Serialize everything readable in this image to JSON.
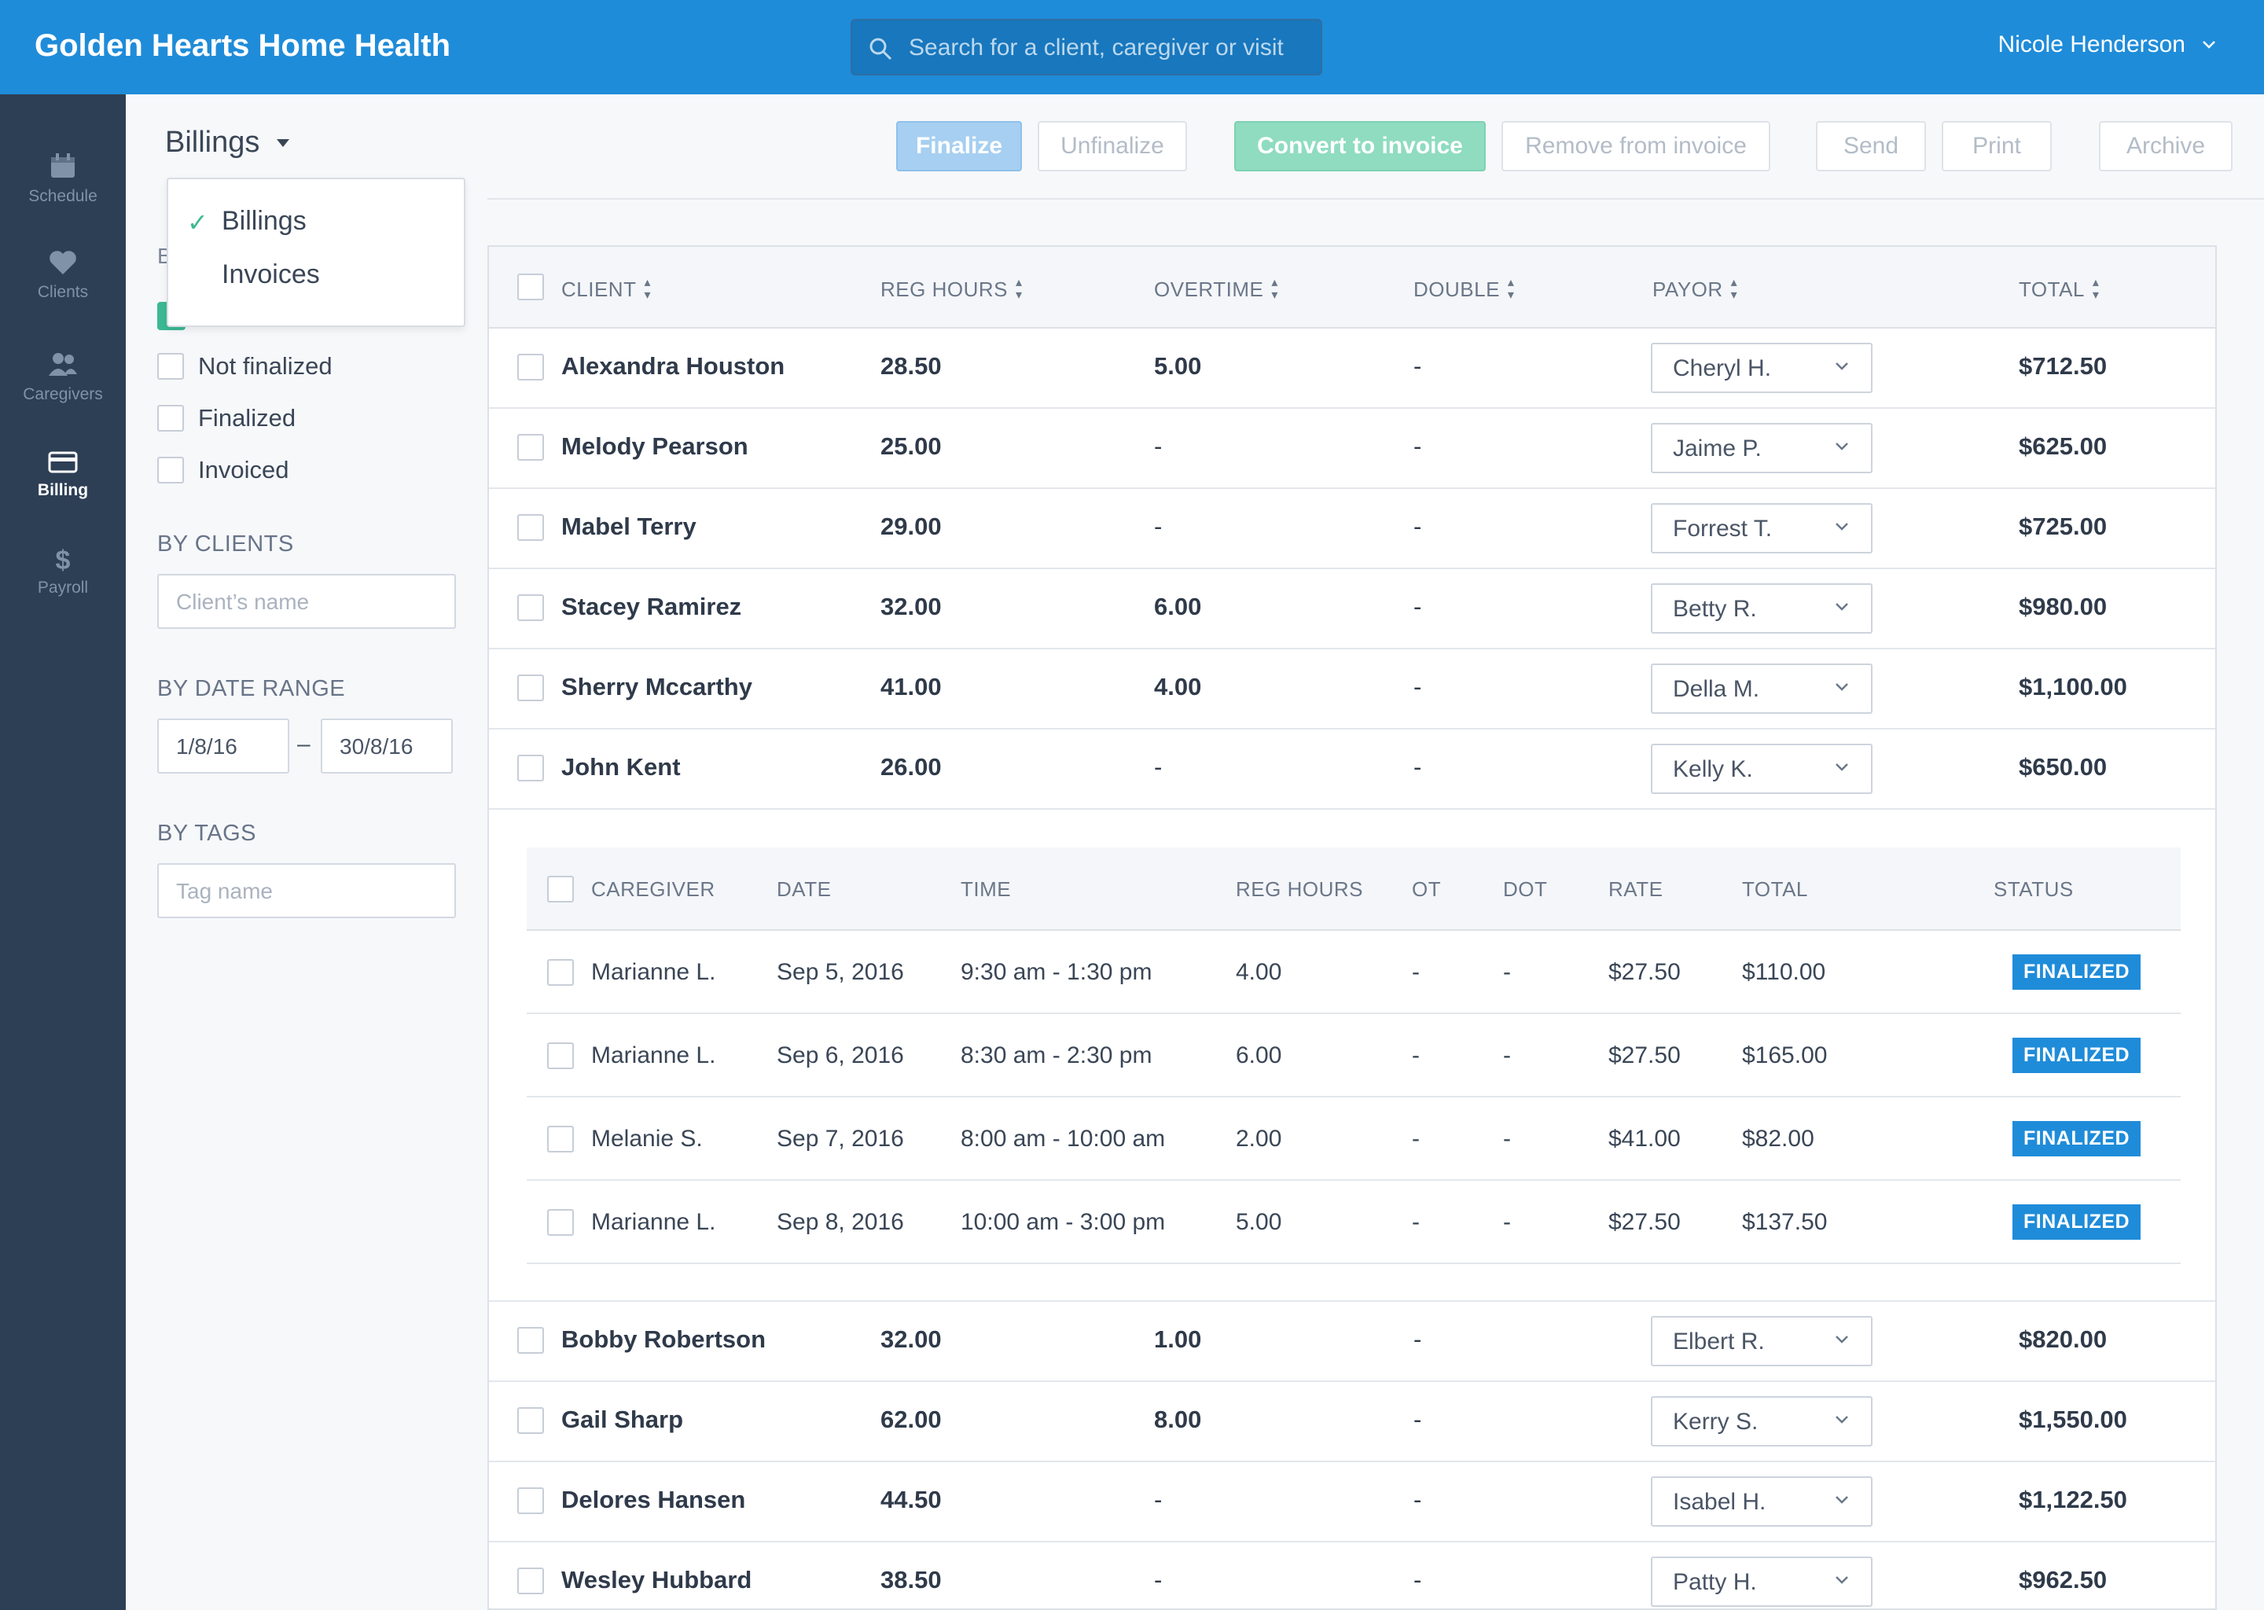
{
  "app": {
    "title": "Golden Hearts Home Health",
    "user": "Nicole Henderson"
  },
  "search": {
    "placeholder": "Search for a client, caregiver or visit"
  },
  "nav": [
    {
      "label": "Schedule",
      "icon": "calendar-icon",
      "active": false
    },
    {
      "label": "Clients",
      "icon": "heart-icon",
      "active": false
    },
    {
      "label": "Caregivers",
      "icon": "people-icon",
      "active": false
    },
    {
      "label": "Billing",
      "icon": "card-icon",
      "active": true
    },
    {
      "label": "Payroll",
      "icon": "dollar-icon",
      "active": false
    }
  ],
  "mode": {
    "selected": "Billings",
    "options": [
      "Billings",
      "Invoices"
    ]
  },
  "filters": {
    "partial_heading": "B",
    "status_options": [
      "Not finalized",
      "Finalized",
      "Invoiced"
    ],
    "by_clients": {
      "heading": "BY CLIENTS",
      "placeholder": "Client’s name"
    },
    "by_date": {
      "heading": "BY DATE RANGE",
      "from": "1/8/16",
      "separator": "–",
      "to": "30/8/16"
    },
    "by_tags": {
      "heading": "BY TAGS",
      "placeholder": "Tag name"
    }
  },
  "toolbar": {
    "finalize": "Finalize",
    "unfinalize": "Unfinalize",
    "convert": "Convert to invoice",
    "remove": "Remove from invoice",
    "send": "Send",
    "print": "Print",
    "archive": "Archive"
  },
  "table": {
    "headers": {
      "client": "CLIENT",
      "reg_hours": "REG HOURS",
      "overtime": "OVERTIME",
      "double": "DOUBLE",
      "payor": "PAYOR",
      "total": "TOTAL"
    },
    "rows_top": [
      {
        "client": "Alexandra Houston",
        "reg": "28.50",
        "ot": "5.00",
        "double": "-",
        "payor": "Cheryl H.",
        "total": "$712.50"
      },
      {
        "client": "Melody Pearson",
        "reg": "25.00",
        "ot": "-",
        "double": "-",
        "payor": "Jaime P.",
        "total": "$625.00"
      },
      {
        "client": "Mabel Terry",
        "reg": "29.00",
        "ot": "-",
        "double": "-",
        "payor": "Forrest T.",
        "total": "$725.00"
      },
      {
        "client": "Stacey Ramirez",
        "reg": "32.00",
        "ot": "6.00",
        "double": "-",
        "payor": "Betty R.",
        "total": "$980.00"
      },
      {
        "client": "Sherry Mccarthy",
        "reg": "41.00",
        "ot": "4.00",
        "double": "-",
        "payor": "Della M.",
        "total": "$1,100.00"
      },
      {
        "client": "John Kent",
        "reg": "26.00",
        "ot": "-",
        "double": "-",
        "payor": "Kelly K.",
        "total": "$650.00"
      }
    ],
    "visits": {
      "headers": {
        "caregiver": "CAREGIVER",
        "date": "DATE",
        "time": "TIME",
        "reg": "REG HOURS",
        "ot": "OT",
        "dot": "DOT",
        "rate": "RATE",
        "total": "TOTAL",
        "status": "STATUS"
      },
      "rows": [
        {
          "caregiver": "Marianne L.",
          "date": "Sep 5, 2016",
          "time": "9:30 am - 1:30 pm",
          "reg": "4.00",
          "ot": "-",
          "dot": "-",
          "rate": "$27.50",
          "total": "$110.00",
          "status": "FINALIZED"
        },
        {
          "caregiver": "Marianne L.",
          "date": "Sep 6, 2016",
          "time": "8:30 am - 2:30 pm",
          "reg": "6.00",
          "ot": "-",
          "dot": "-",
          "rate": "$27.50",
          "total": "$165.00",
          "status": "FINALIZED"
        },
        {
          "caregiver": "Melanie S.",
          "date": "Sep 7, 2016",
          "time": "8:00 am - 10:00 am",
          "reg": "2.00",
          "ot": "-",
          "dot": "-",
          "rate": "$41.00",
          "total": "$82.00",
          "status": "FINALIZED"
        },
        {
          "caregiver": "Marianne L.",
          "date": "Sep 8, 2016",
          "time": "10:00 am - 3:00 pm",
          "reg": "5.00",
          "ot": "-",
          "dot": "-",
          "rate": "$27.50",
          "total": "$137.50",
          "status": "FINALIZED"
        }
      ]
    },
    "rows_bottom": [
      {
        "client": "Bobby Robertson",
        "reg": "32.00",
        "ot": "1.00",
        "double": "-",
        "payor": "Elbert R.",
        "total": "$820.00"
      },
      {
        "client": "Gail Sharp",
        "reg": "62.00",
        "ot": "8.00",
        "double": "-",
        "payor": "Kerry S.",
        "total": "$1,550.00"
      },
      {
        "client": "Delores Hansen",
        "reg": "44.50",
        "ot": "-",
        "double": "-",
        "payor": "Isabel H.",
        "total": "$1,122.50"
      },
      {
        "client": "Wesley Hubbard",
        "reg": "38.50",
        "ot": "-",
        "double": "-",
        "payor": "Patty H.",
        "total": "$962.50"
      }
    ]
  },
  "colors": {
    "header": "#1f8cd9",
    "nav": "#2d3f55",
    "accent_green": "#3cb993",
    "badge": "#1f8cd9"
  }
}
